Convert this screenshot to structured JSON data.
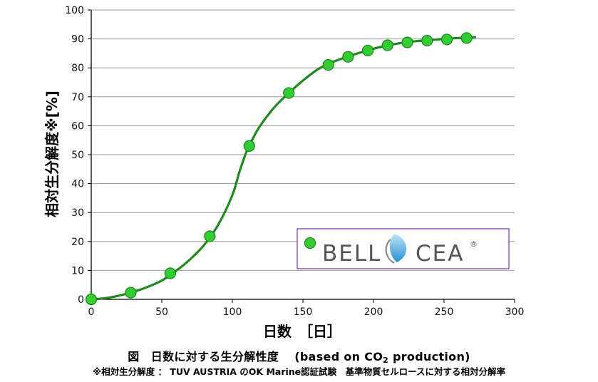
{
  "chart_data": {
    "type": "line",
    "ylabel": "相対生分解度※[%]",
    "xlabel": "日数　［日］",
    "xlim": [
      0,
      300
    ],
    "ylim": [
      0,
      100
    ],
    "xticks": [
      0,
      50,
      100,
      150,
      200,
      250,
      300
    ],
    "yticks": [
      0,
      10,
      20,
      30,
      40,
      50,
      60,
      70,
      80,
      90,
      100
    ],
    "grid": "horizontal",
    "legend_position": "bottom-right",
    "series": [
      {
        "name": "BELLOCEA",
        "marker_color": "#33cc33",
        "line_color": "#1e8a1e",
        "points": [
          {
            "x": 0,
            "y": 0
          },
          {
            "x": 28,
            "y": 2.3
          },
          {
            "x": 56,
            "y": 9
          },
          {
            "x": 84,
            "y": 21.8
          },
          {
            "x": 112,
            "y": 53
          },
          {
            "x": 140,
            "y": 71.3
          },
          {
            "x": 168,
            "y": 81
          },
          {
            "x": 182,
            "y": 83.8
          },
          {
            "x": 196,
            "y": 86
          },
          {
            "x": 210,
            "y": 87.8
          },
          {
            "x": 224,
            "y": 88.8
          },
          {
            "x": 238,
            "y": 89.4
          },
          {
            "x": 252,
            "y": 89.8
          },
          {
            "x": 266,
            "y": 90.3
          }
        ],
        "fit_curve": [
          [
            0,
            0
          ],
          [
            10,
            0.4
          ],
          [
            20,
            1.3
          ],
          [
            30,
            2.6
          ],
          [
            40,
            4.3
          ],
          [
            50,
            6.5
          ],
          [
            60,
            9.8
          ],
          [
            70,
            13.8
          ],
          [
            80,
            18.8
          ],
          [
            90,
            25.8
          ],
          [
            100,
            36
          ],
          [
            105,
            44
          ],
          [
            110,
            51
          ],
          [
            115,
            56
          ],
          [
            120,
            60.2
          ],
          [
            130,
            66.5
          ],
          [
            140,
            71.3
          ],
          [
            150,
            75.6
          ],
          [
            160,
            79.3
          ],
          [
            170,
            81.8
          ],
          [
            180,
            83.6
          ],
          [
            190,
            85.2
          ],
          [
            200,
            86.6
          ],
          [
            210,
            87.8
          ],
          [
            220,
            88.6
          ],
          [
            230,
            89.2
          ],
          [
            240,
            89.6
          ],
          [
            250,
            90
          ],
          [
            260,
            90.3
          ],
          [
            272,
            90.6
          ]
        ]
      }
    ]
  },
  "legend": {
    "brand_part1": "BELL",
    "brand_part2": "CEA",
    "registered_mark": "®"
  },
  "caption": {
    "main_prefix": "図　日数に対する生分解性度　 (based on CO",
    "main_subscript": "2",
    "main_suffix": " production)",
    "note": "※相対生分解度 ： TUV AUSTRIA のOK Marine認証試験　基準物質セルロースに対する相対分解率"
  }
}
